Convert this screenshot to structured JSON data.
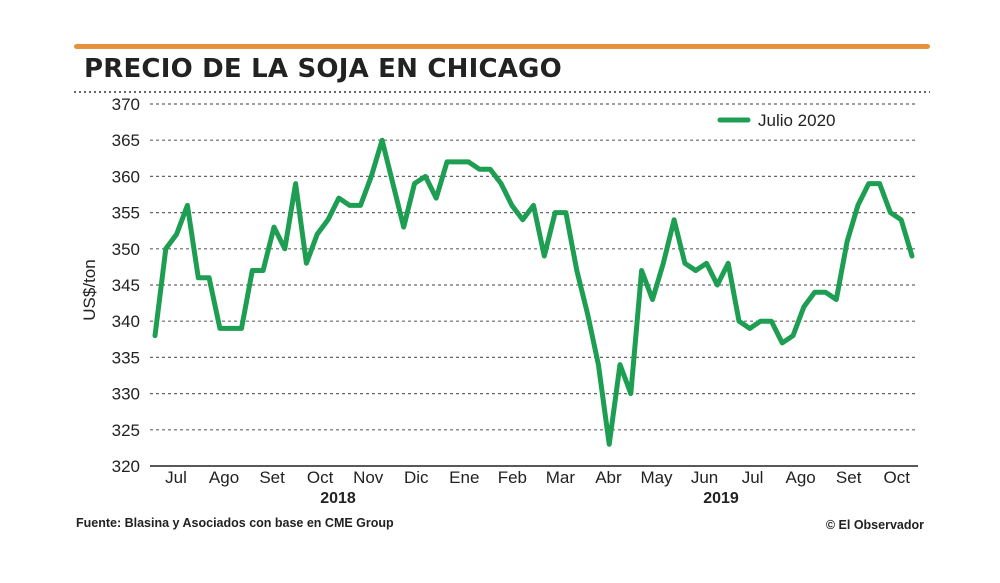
{
  "header": {
    "title": "PRECIO DE LA SOJA EN CHICAGO",
    "accent_color": "#e8913a"
  },
  "footer": {
    "source": "Fuente: Blasina y Asociados con base en CME Group",
    "credit": "© El Observador"
  },
  "chart_data": {
    "type": "line",
    "title": "PRECIO DE LA SOJA EN CHICAGO",
    "ylabel": "US$/ton",
    "xlabel": "",
    "ylim": [
      320,
      370
    ],
    "yticks": [
      320,
      325,
      330,
      335,
      340,
      345,
      350,
      355,
      360,
      365,
      370
    ],
    "grid": true,
    "legend_position": "top-right",
    "month_labels": [
      "Jul",
      "Ago",
      "Set",
      "Oct",
      "Nov",
      "Dic",
      "Ene",
      "Feb",
      "Mar",
      "Abr",
      "May",
      "Jun",
      "Jul",
      "Ago",
      "Set",
      "Oct"
    ],
    "year_labels": [
      "2018",
      "2019"
    ],
    "series": [
      {
        "name": "Julio 2020",
        "color": "#1e9e52",
        "values": [
          338,
          350,
          352,
          356,
          346,
          346,
          339,
          339,
          339,
          347,
          347,
          353,
          350,
          359,
          348,
          352,
          354,
          357,
          356,
          356,
          360,
          365,
          359,
          353,
          359,
          360,
          357,
          362,
          362,
          362,
          361,
          361,
          359,
          356,
          354,
          356,
          349,
          355,
          355,
          347,
          341,
          334,
          323,
          334,
          330,
          347,
          343,
          348,
          354,
          348,
          347,
          348,
          345,
          348,
          340,
          339,
          340,
          340,
          337,
          338,
          342,
          344,
          344,
          343,
          351,
          356,
          359,
          359,
          355,
          354,
          349
        ]
      }
    ]
  }
}
